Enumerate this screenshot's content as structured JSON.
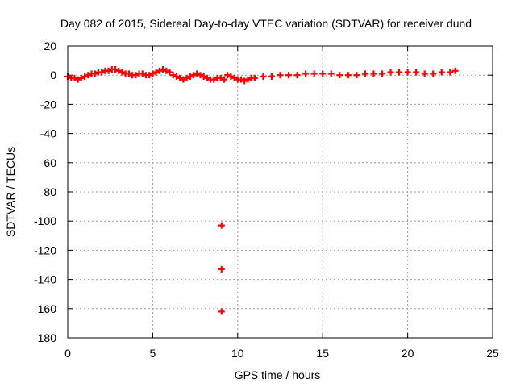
{
  "chart_data": {
    "type": "scatter",
    "title": "Day 082 of 2015, Sidereal Day-to-day VTEC variation (SDTVAR) for receiver dund",
    "xlabel": "GPS time / hours",
    "ylabel": "SDTVAR / TECUs",
    "xlim": [
      0,
      25
    ],
    "ylim": [
      -180,
      20
    ],
    "grid": true,
    "x_ticks": [
      0,
      5,
      10,
      15,
      20,
      25
    ],
    "y_ticks": [
      20,
      0,
      -20,
      -40,
      -60,
      -80,
      -100,
      -120,
      -140,
      -160,
      -180
    ],
    "x_tick_labels": [
      "0",
      "5",
      "10",
      "15",
      "20",
      "25"
    ],
    "y_tick_labels": [
      "20",
      "0",
      "-20",
      "-40",
      "-60",
      "-80",
      "-100",
      "-120",
      "-140",
      "-160",
      "-180"
    ],
    "series": [
      {
        "name": "SDTVAR",
        "marker": "plus",
        "color": "#ff0000",
        "x": [
          0.0,
          0.2,
          0.4,
          0.6,
          0.8,
          1.0,
          1.2,
          1.4,
          1.6,
          1.8,
          2.0,
          2.2,
          2.4,
          2.6,
          2.8,
          3.0,
          3.2,
          3.4,
          3.6,
          3.8,
          4.0,
          4.2,
          4.4,
          4.6,
          4.8,
          5.0,
          5.2,
          5.4,
          5.6,
          5.8,
          6.0,
          6.2,
          6.4,
          6.6,
          6.8,
          7.0,
          7.2,
          7.4,
          7.6,
          7.8,
          8.0,
          8.2,
          8.4,
          8.6,
          8.8,
          9.0,
          9.2,
          9.4,
          9.6,
          9.8,
          10.0,
          10.2,
          10.4,
          10.6,
          10.8,
          11.0,
          11.5,
          12.0,
          12.5,
          13.0,
          13.5,
          14.0,
          14.5,
          15.0,
          15.5,
          16.0,
          16.5,
          17.0,
          17.5,
          18.0,
          18.5,
          19.0,
          19.5,
          20.0,
          20.5,
          21.0,
          21.5,
          22.0,
          22.5,
          22.8,
          9.05,
          9.05,
          9.05
        ],
        "y": [
          -1,
          -2,
          -2,
          -3,
          -2,
          -1,
          0,
          1,
          1,
          2,
          2,
          3,
          3,
          4,
          4,
          3,
          2,
          1,
          1,
          0,
          0,
          1,
          1,
          0,
          0,
          1,
          2,
          3,
          4,
          3,
          2,
          0,
          -1,
          -2,
          -3,
          -2,
          -1,
          0,
          1,
          0,
          -1,
          -2,
          -3,
          -3,
          -2,
          -2,
          -3,
          0,
          -1,
          -2,
          -3,
          -3,
          -4,
          -3,
          -2,
          -2,
          -1,
          -1,
          0,
          0,
          0,
          1,
          1,
          1,
          1,
          0,
          0,
          0,
          1,
          1,
          1,
          2,
          2,
          2,
          2,
          1,
          1,
          2,
          2,
          3,
          -103,
          -133,
          -162
        ]
      }
    ]
  }
}
